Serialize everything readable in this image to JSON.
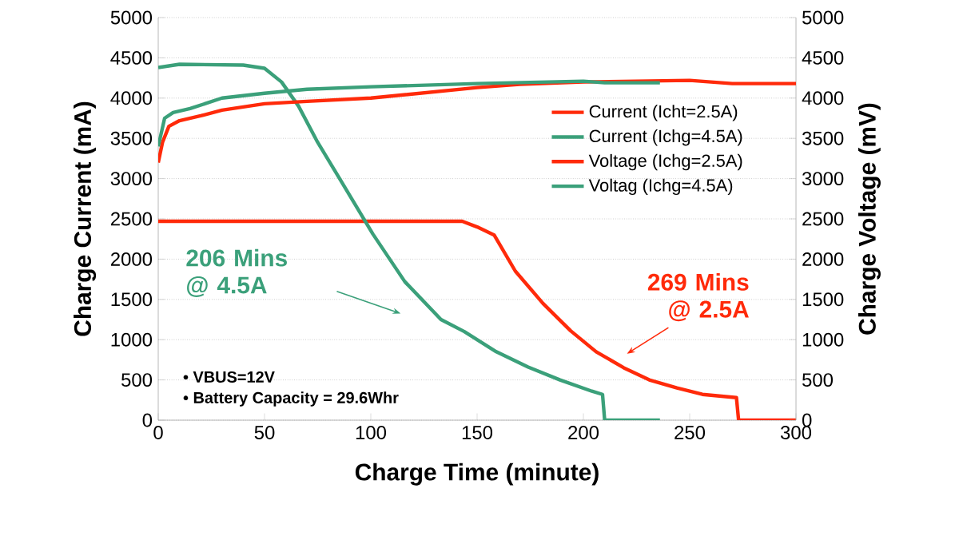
{
  "chart_data": {
    "type": "line",
    "xlabel": "Charge Time (minute)",
    "ylabel": "Charge Current (mA)",
    "y2label": "Charge Voltage (mV)",
    "xlim": [
      0,
      300
    ],
    "xticks": [
      0,
      50,
      100,
      150,
      200,
      250,
      300
    ],
    "ylim": [
      0,
      5000
    ],
    "yticks": [
      0,
      500,
      1000,
      1500,
      2000,
      2500,
      3000,
      3500,
      4000,
      4500,
      5000
    ],
    "y2lim": [
      0,
      5000
    ],
    "y2ticks": [
      0,
      500,
      1000,
      1500,
      2000,
      2500,
      3000,
      3500,
      4000,
      4500,
      5000
    ],
    "grid": "y",
    "legend": "top right",
    "series": [
      {
        "name": "Current (Icht=2.5A)",
        "color": "#ff2a0a",
        "x": [
          0,
          50,
          100,
          143,
          150,
          158,
          168,
          181,
          194,
          206,
          219,
          231,
          244,
          256,
          272,
          273,
          300
        ],
        "values": [
          2470,
          2470,
          2470,
          2470,
          2400,
          2300,
          1850,
          1450,
          1110,
          850,
          650,
          500,
          400,
          320,
          280,
          0,
          0
        ]
      },
      {
        "name": "Current (Ichg=4.5A)",
        "color": "#3ba07a",
        "x": [
          0,
          10,
          40,
          50,
          58,
          66,
          75,
          86,
          101,
          116,
          133,
          144,
          159,
          174,
          189,
          204,
          209,
          210,
          236
        ],
        "values": [
          4380,
          4420,
          4410,
          4370,
          4200,
          3900,
          3450,
          2970,
          2310,
          1720,
          1250,
          1100,
          850,
          660,
          500,
          360,
          320,
          0,
          0
        ]
      },
      {
        "name": "Voltage (Ichg=2.5A)",
        "color": "#ff2a0a",
        "axis": "y2",
        "x": [
          0,
          2,
          5,
          10,
          20,
          30,
          50,
          70,
          100,
          150,
          170,
          200,
          250,
          260,
          270,
          300
        ],
        "values": [
          3200,
          3450,
          3650,
          3720,
          3780,
          3850,
          3930,
          3960,
          4000,
          4130,
          4170,
          4200,
          4220,
          4200,
          4180,
          4180
        ]
      },
      {
        "name": "Voltag (Ichg=4.5A)",
        "color": "#3ba07a",
        "axis": "y2",
        "x": [
          0,
          3,
          7,
          15,
          30,
          50,
          70,
          100,
          150,
          200,
          205,
          210,
          236
        ],
        "values": [
          3400,
          3750,
          3820,
          3870,
          4000,
          4060,
          4110,
          4140,
          4180,
          4210,
          4200,
          4190,
          4190
        ]
      }
    ],
    "annotations": [
      "206 Mins @ 4.5A",
      "269 Mins @ 2.5A",
      "• VBUS=12V",
      "• Battery Capacity = 29.6Whr"
    ]
  }
}
